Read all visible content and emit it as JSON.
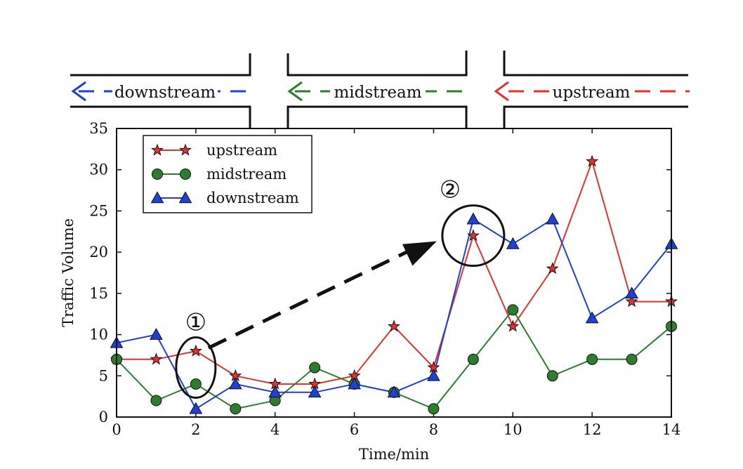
{
  "road": {
    "segments": [
      {
        "label": "downstream",
        "color": "#1f3fd6"
      },
      {
        "label": "midstream",
        "color": "#2e7d2e"
      },
      {
        "label": "upstream",
        "color": "#e0322e"
      }
    ]
  },
  "chart_data": {
    "type": "line",
    "title": "",
    "xlabel": "Time/min",
    "ylabel": "Traffic Volume",
    "xlim": [
      0,
      14
    ],
    "ylim": [
      0,
      35
    ],
    "xticks": [
      0,
      2,
      4,
      6,
      8,
      10,
      12,
      14
    ],
    "yticks": [
      0,
      5,
      10,
      15,
      20,
      25,
      30,
      35
    ],
    "grid": false,
    "legend_position": "top-left",
    "x": [
      0,
      1,
      2,
      3,
      4,
      5,
      6,
      7,
      8,
      9,
      10,
      11,
      12,
      13,
      14
    ],
    "series": [
      {
        "name": "upstream",
        "color": "#e0322e",
        "marker": "star",
        "values": [
          7,
          7,
          8,
          5,
          4,
          4,
          5,
          11,
          6,
          22,
          11,
          18,
          31,
          14,
          14
        ]
      },
      {
        "name": "midstream",
        "color": "#2e7d2e",
        "marker": "circle",
        "values": [
          7,
          2,
          4,
          1,
          2,
          6,
          4,
          3,
          1,
          7,
          13,
          5,
          7,
          7,
          11
        ]
      },
      {
        "name": "downstream",
        "color": "#1f3fd6",
        "marker": "triangle",
        "values": [
          9,
          10,
          1,
          4,
          3,
          3,
          4,
          3,
          5,
          24,
          21,
          24,
          12,
          15,
          21
        ]
      }
    ],
    "annotations": [
      {
        "label": "①",
        "x": 2,
        "y": 6
      },
      {
        "label": "②",
        "x": 9,
        "y": 22
      }
    ]
  }
}
